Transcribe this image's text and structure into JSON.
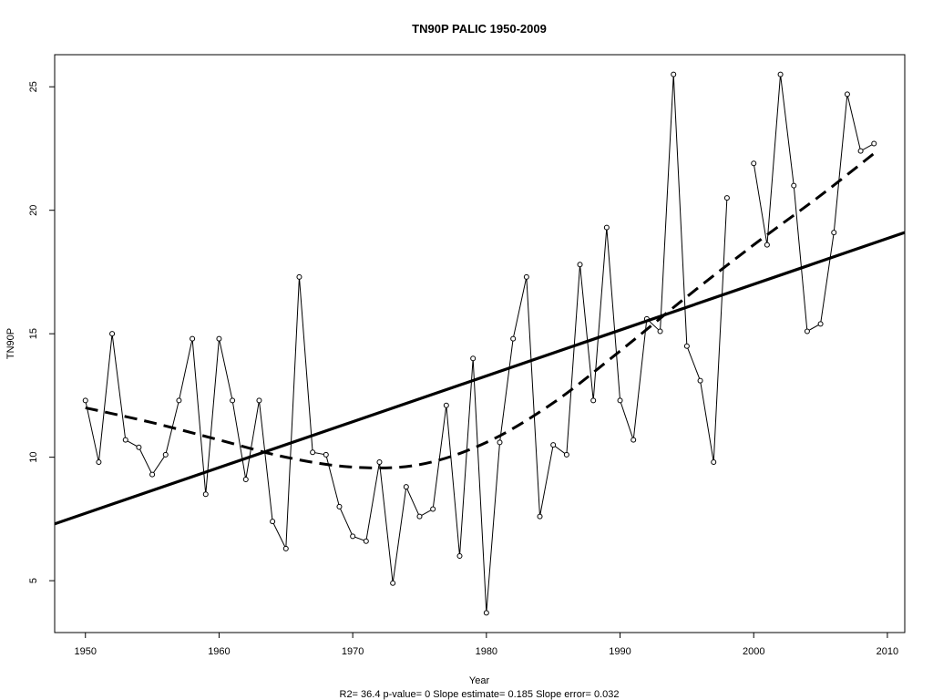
{
  "chart_data": {
    "type": "line",
    "title": "TN90P   PALIC 1950-2009",
    "xlabel": "Year",
    "ylabel": "TN90P",
    "footer": "R2= 36.4  p-value= 0  Slope estimate= 0.185  Slope error= 0.032",
    "xlim": [
      1947.7,
      2011.3
    ],
    "ylim": [
      2.9,
      26.3
    ],
    "x_ticks": [
      1950,
      1960,
      1970,
      1980,
      1990,
      2000,
      2010
    ],
    "x_tick_labels": [
      "1950",
      "1960",
      "1970",
      "1980",
      "1990",
      "2000",
      "2010"
    ],
    "y_ticks": [
      5,
      10,
      15,
      20,
      25
    ],
    "y_tick_labels": [
      "5",
      "10",
      "15",
      "20",
      "25"
    ],
    "grid": false,
    "series": [
      {
        "style": "line-with-points",
        "x": [
          1950,
          1951,
          1952,
          1953,
          1954,
          1955,
          1956,
          1957,
          1958,
          1959,
          1960,
          1961,
          1962,
          1963,
          1964,
          1965,
          1966,
          1967,
          1968,
          1969,
          1970,
          1971,
          1972,
          1973,
          1974,
          1975,
          1976,
          1977,
          1978,
          1979,
          1980,
          1981,
          1982,
          1983,
          1984,
          1985,
          1986,
          1987,
          1988,
          1989,
          1990,
          1991,
          1992,
          1993,
          1994,
          1995,
          1996,
          1997,
          1998,
          1999,
          2000,
          2001,
          2002,
          2003,
          2004,
          2005,
          2006,
          2007,
          2008,
          2009
        ],
        "values": [
          12.3,
          9.8,
          15.0,
          10.7,
          10.4,
          9.3,
          10.1,
          12.3,
          14.8,
          8.5,
          14.8,
          12.3,
          9.1,
          12.3,
          7.4,
          6.3,
          17.3,
          10.2,
          10.1,
          8.0,
          6.8,
          6.6,
          9.8,
          4.9,
          8.8,
          7.6,
          7.9,
          12.1,
          6.0,
          14.0,
          3.7,
          10.6,
          14.8,
          17.3,
          7.6,
          10.5,
          10.1,
          17.8,
          12.3,
          19.3,
          12.3,
          10.7,
          15.6,
          15.1,
          25.5,
          14.5,
          13.1,
          9.8,
          20.5,
          null,
          21.9,
          18.6,
          25.5,
          21.0,
          15.1,
          15.4,
          19.1,
          24.7,
          22.4,
          22.7
        ]
      },
      {
        "style": "linear-trend",
        "x": [
          1947.7,
          2011.3
        ],
        "values": [
          7.3,
          19.1
        ]
      },
      {
        "style": "dashed-smooth",
        "x": [
          1950,
          1955,
          1960,
          1965,
          1970,
          1975,
          1980,
          1985,
          1990,
          1995,
          2000,
          2005,
          2009
        ],
        "values": [
          12.0,
          11.4,
          10.7,
          10.0,
          9.6,
          9.7,
          10.6,
          12.2,
          14.3,
          16.5,
          18.6,
          20.6,
          22.3
        ]
      }
    ]
  }
}
